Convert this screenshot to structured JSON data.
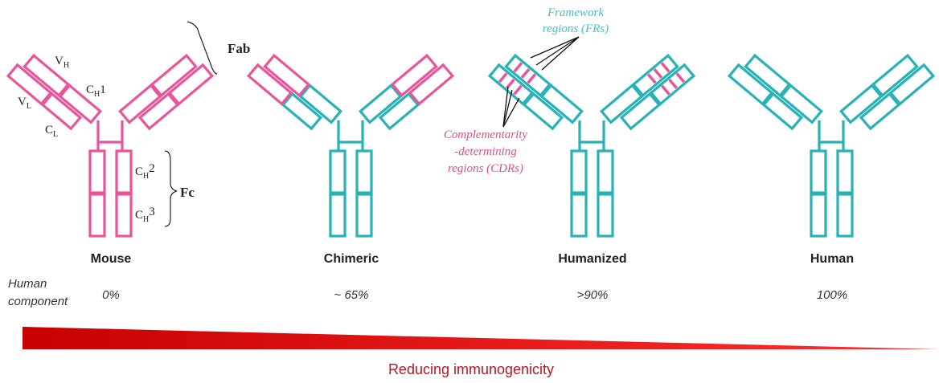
{
  "colors": {
    "mouse": "#e8559a",
    "human": "#27b2b6",
    "wedge": "#d40000",
    "caption": "#c0141e"
  },
  "antibodies": [
    {
      "name": "Mouse",
      "percent": "0%",
      "scheme": "mouse"
    },
    {
      "name": "Chimeric",
      "percent": "~ 65%",
      "scheme": "chimeric"
    },
    {
      "name": "Humanized",
      "percent": ">90%",
      "scheme": "humanized"
    },
    {
      "name": "Human",
      "percent": "100%",
      "scheme": "human"
    }
  ],
  "domain_labels": {
    "vh": "V",
    "vh_sub": "H",
    "vl": "V",
    "vl_sub": "L",
    "ch1": "C",
    "ch1_sub": "H",
    "ch1_num": "1",
    "cl": "C",
    "cl_sub": "L",
    "ch2": "C",
    "ch2_sub": "H",
    "ch2_num": "2",
    "ch3": "C",
    "ch3_sub": "H",
    "ch3_num": "3",
    "fab": "Fab",
    "fc": "Fc"
  },
  "annotations": {
    "framework_line1": "Framework",
    "framework_line2": "regions (FRs)",
    "cdr_line1": "Complementarity",
    "cdr_line2": "-determining",
    "cdr_line3": "regions (CDRs)"
  },
  "row_label_line1": "Human",
  "row_label_line2": "component",
  "caption": "Reducing immunogenicity"
}
